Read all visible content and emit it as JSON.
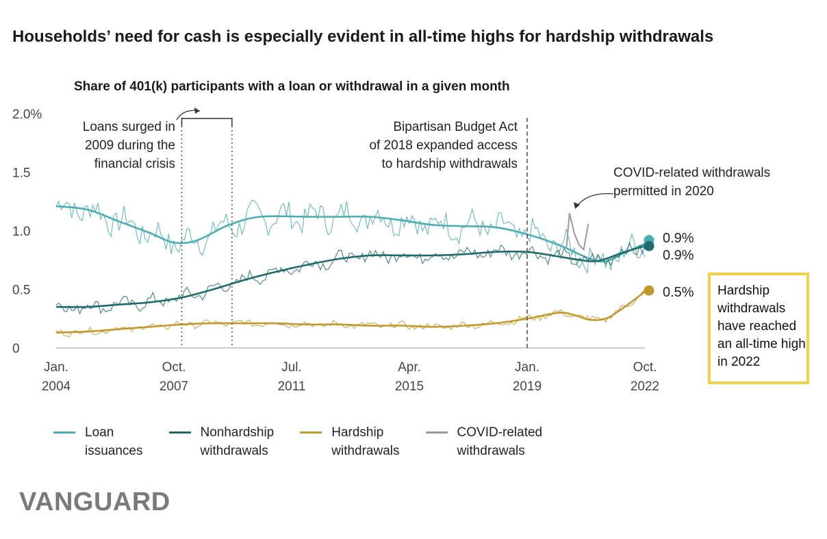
{
  "title": "Households’ need for cash is especially evident in all-time highs for hardship withdrawals",
  "subtitle": "Share of 401(k) participants with a loan or withdrawal in a given month",
  "annotations": {
    "loans_surge": [
      "Loans surged in",
      "2009 during the",
      "financial crisis"
    ],
    "bba": [
      "Bipartisan Budget Act",
      "of 2018 expanded access",
      "to hardship withdrawals"
    ],
    "covid": [
      "COVID-related withdrawals",
      "permitted in 2020"
    ],
    "callout": "Hardship withdrawals have reached an all-time high in 2022"
  },
  "end_labels": {
    "loan": "0.9%",
    "nonhardship": "0.9%",
    "hardship": "0.5%"
  },
  "brand": "VANGUARD",
  "legend": [
    {
      "label": "Loan\nissuances",
      "color": "#4aaeb0"
    },
    {
      "label": "Nonhardship\nwithdrawals",
      "color": "#1f6b6b"
    },
    {
      "label": "Hardship\nwithdrawals",
      "color": "#c19a2e"
    },
    {
      "label": "COVID-related\nwithdrawals",
      "color": "#9a9a9a"
    }
  ],
  "chart_data": {
    "type": "line",
    "title": "Share of 401(k) participants with a loan or withdrawal in a given month",
    "ylim": [
      0,
      2.0
    ],
    "y_ticks": [
      "0",
      "0.5",
      "1.0",
      "1.5",
      "2.0%"
    ],
    "x_ticks": [
      {
        "month": "Jan.",
        "year": "2004",
        "x": 2004.0
      },
      {
        "month": "Oct.",
        "year": "2007",
        "x": 2007.75
      },
      {
        "month": "Jul.",
        "year": "2011",
        "x": 2011.5
      },
      {
        "month": "Apr.",
        "year": "2015",
        "x": 2015.25
      },
      {
        "month": "Jan.",
        "year": "2019",
        "x": 2019.0
      },
      {
        "month": "Oct.",
        "year": "2022",
        "x": 2022.75
      }
    ],
    "xlim": [
      2004.0,
      2022.75
    ],
    "series": [
      {
        "name": "Loan issuances",
        "color": "#4aaeb0",
        "trend": [
          [
            2004,
            1.21
          ],
          [
            2005,
            1.18
          ],
          [
            2006,
            1.08
          ],
          [
            2007,
            0.98
          ],
          [
            2007.75,
            0.9
          ],
          [
            2008.5,
            0.92
          ],
          [
            2009.5,
            1.05
          ],
          [
            2010.5,
            1.12
          ],
          [
            2012,
            1.12
          ],
          [
            2013,
            1.12
          ],
          [
            2014,
            1.12
          ],
          [
            2015,
            1.09
          ],
          [
            2016,
            1.05
          ],
          [
            2017,
            1.04
          ],
          [
            2018,
            1.03
          ],
          [
            2019,
            0.97
          ],
          [
            2020,
            0.88
          ],
          [
            2021,
            0.76
          ],
          [
            2021.5,
            0.74
          ],
          [
            2022,
            0.8
          ],
          [
            2022.75,
            0.89
          ]
        ],
        "monthly_amplitude": 0.16
      },
      {
        "name": "Nonhardship withdrawals",
        "color": "#1f6b6b",
        "trend": [
          [
            2004,
            0.35
          ],
          [
            2005,
            0.35
          ],
          [
            2006,
            0.37
          ],
          [
            2007,
            0.39
          ],
          [
            2008,
            0.43
          ],
          [
            2009,
            0.5
          ],
          [
            2010,
            0.58
          ],
          [
            2011,
            0.65
          ],
          [
            2012,
            0.71
          ],
          [
            2013,
            0.76
          ],
          [
            2014,
            0.79
          ],
          [
            2015,
            0.79
          ],
          [
            2016,
            0.79
          ],
          [
            2017,
            0.8
          ],
          [
            2018,
            0.82
          ],
          [
            2019,
            0.82
          ],
          [
            2020,
            0.78
          ],
          [
            2021,
            0.74
          ],
          [
            2021.5,
            0.76
          ],
          [
            2022,
            0.81
          ],
          [
            2022.75,
            0.87
          ]
        ],
        "monthly_amplitude": 0.08
      },
      {
        "name": "Hardship withdrawals",
        "color": "#c19a2e",
        "trend": [
          [
            2004,
            0.13
          ],
          [
            2005,
            0.14
          ],
          [
            2006,
            0.16
          ],
          [
            2007,
            0.18
          ],
          [
            2008,
            0.2
          ],
          [
            2009,
            0.21
          ],
          [
            2010,
            0.21
          ],
          [
            2011,
            0.21
          ],
          [
            2012,
            0.2
          ],
          [
            2013,
            0.2
          ],
          [
            2014,
            0.19
          ],
          [
            2015,
            0.19
          ],
          [
            2016,
            0.18
          ],
          [
            2017,
            0.19
          ],
          [
            2018,
            0.21
          ],
          [
            2019,
            0.25
          ],
          [
            2020,
            0.3
          ],
          [
            2020.5,
            0.28
          ],
          [
            2021,
            0.24
          ],
          [
            2021.5,
            0.25
          ],
          [
            2022,
            0.33
          ],
          [
            2022.75,
            0.48
          ]
        ],
        "monthly_amplitude": 0.04
      },
      {
        "name": "COVID-related withdrawals",
        "color": "#9a9a9a",
        "points": [
          [
            2020.25,
            0.85
          ],
          [
            2020.35,
            1.15
          ],
          [
            2020.5,
            0.98
          ],
          [
            2020.65,
            0.88
          ],
          [
            2020.8,
            0.84
          ],
          [
            2020.95,
            1.06
          ]
        ]
      }
    ],
    "end_values": [
      0.9,
      0.9,
      0.5
    ],
    "vlines": [
      {
        "x": 2008.0,
        "style": "dotted"
      },
      {
        "x": 2009.6,
        "style": "dotted"
      },
      {
        "x": 2019.0,
        "style": "dashed"
      }
    ]
  }
}
